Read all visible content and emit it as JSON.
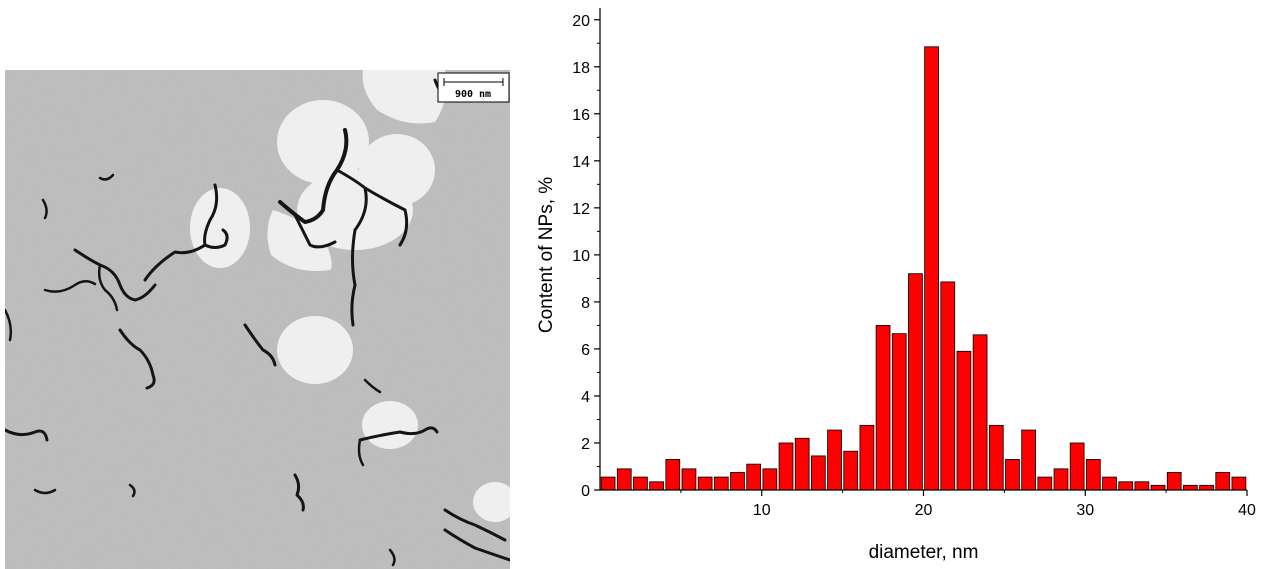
{
  "micrograph": {
    "scale_bar_label": "900 nm"
  },
  "chart_data": {
    "type": "bar",
    "xlabel": "diameter, nm",
    "ylabel": "Content of NPs, %",
    "xlim": [
      0,
      40
    ],
    "ylim": [
      0,
      20.5
    ],
    "x_ticks": [
      10,
      20,
      30,
      40
    ],
    "y_ticks": [
      0,
      2,
      4,
      6,
      8,
      10,
      12,
      14,
      16,
      18,
      20
    ],
    "bar_color": "#ff0000",
    "x": [
      1,
      2,
      3,
      4,
      5,
      6,
      7,
      8,
      9,
      10,
      11,
      12,
      13,
      14,
      15,
      16,
      17,
      18,
      19,
      20,
      21,
      22,
      23,
      24,
      25,
      26,
      27,
      28,
      29,
      30,
      31,
      32,
      33,
      34,
      35,
      36,
      37,
      38,
      39,
      40
    ],
    "values": [
      0.55,
      0.9,
      0.55,
      0.35,
      1.3,
      0.9,
      0.55,
      0.55,
      0.75,
      1.1,
      0.9,
      2.0,
      2.2,
      1.45,
      2.55,
      1.65,
      2.75,
      7.0,
      6.65,
      9.2,
      18.85,
      8.85,
      5.9,
      6.6,
      2.75,
      1.3,
      2.55,
      0.55,
      0.9,
      2.0,
      1.3,
      0.55,
      0.35,
      0.35,
      0.2,
      0.75,
      0.2,
      0.2,
      0.75,
      0.55
    ]
  }
}
